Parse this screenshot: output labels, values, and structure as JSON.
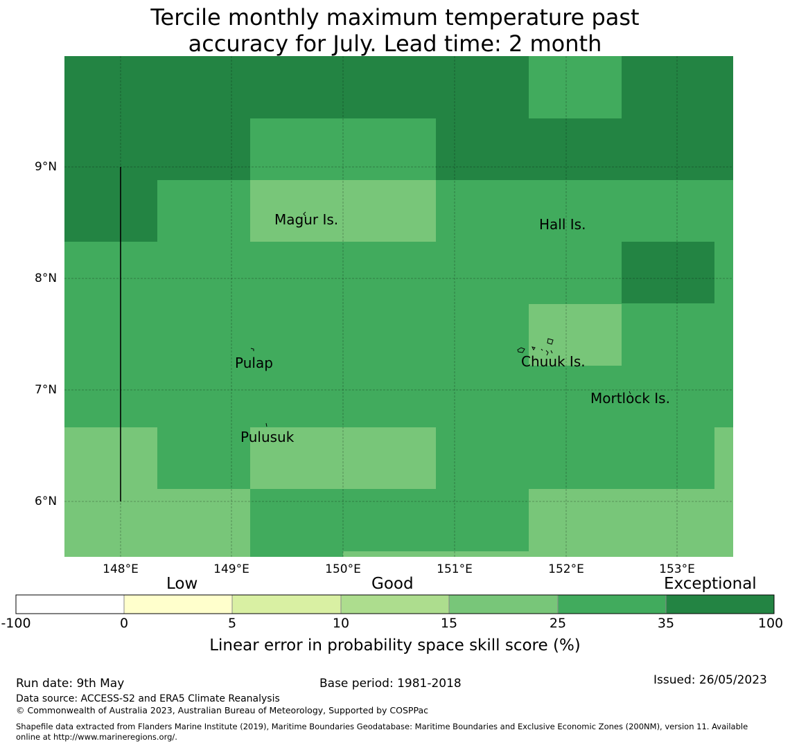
{
  "title_line1": "Tercile monthly maximum temperature past",
  "title_line2": "accuracy for July. Lead time: 2 month",
  "map": {
    "lat_labels": [
      "9°N",
      "8°N",
      "7°N",
      "6°N"
    ],
    "lon_labels": [
      "148°E",
      "149°E",
      "150°E",
      "151°E",
      "152°E",
      "153°E"
    ],
    "places": [
      "Magur Is.",
      "Hall Is.",
      "Pulap",
      "Chuuk Is.",
      "Mortlock Is.",
      "Pulusuk"
    ]
  },
  "colorbar": {
    "categories": [
      "Low",
      "Good",
      "Exceptional"
    ],
    "ticks": [
      "-100",
      "0",
      "5",
      "10",
      "15",
      "25",
      "35",
      "100"
    ],
    "colors": [
      "#ffffff",
      "#ffffcc",
      "#d9f0a3",
      "#addd8e",
      "#78c679",
      "#41ab5d",
      "#238443"
    ],
    "label": "Linear error in probability space skill score (%)"
  },
  "footer": {
    "run_date": "Run date: 9th May",
    "base_period": "Base period: 1981-2018",
    "issued": "Issued: 26/05/2023",
    "data_source": "Data source: ACCESS-S2 and ERA5 Climate Reanalysis",
    "copyright": "© Commonwealth of Australia 2023, Australian Bureau of Meteorology, Supported by COSPPac",
    "shapefile_1": "Shapefile data extracted from Flanders Marine Institute (2019), Maritime Boundaries Geodatabase: Maritime Boundaries and Exclusive Economic Zones (200NM), version 11. Available",
    "shapefile_2": "online at http://www.marineregions.org/."
  }
}
